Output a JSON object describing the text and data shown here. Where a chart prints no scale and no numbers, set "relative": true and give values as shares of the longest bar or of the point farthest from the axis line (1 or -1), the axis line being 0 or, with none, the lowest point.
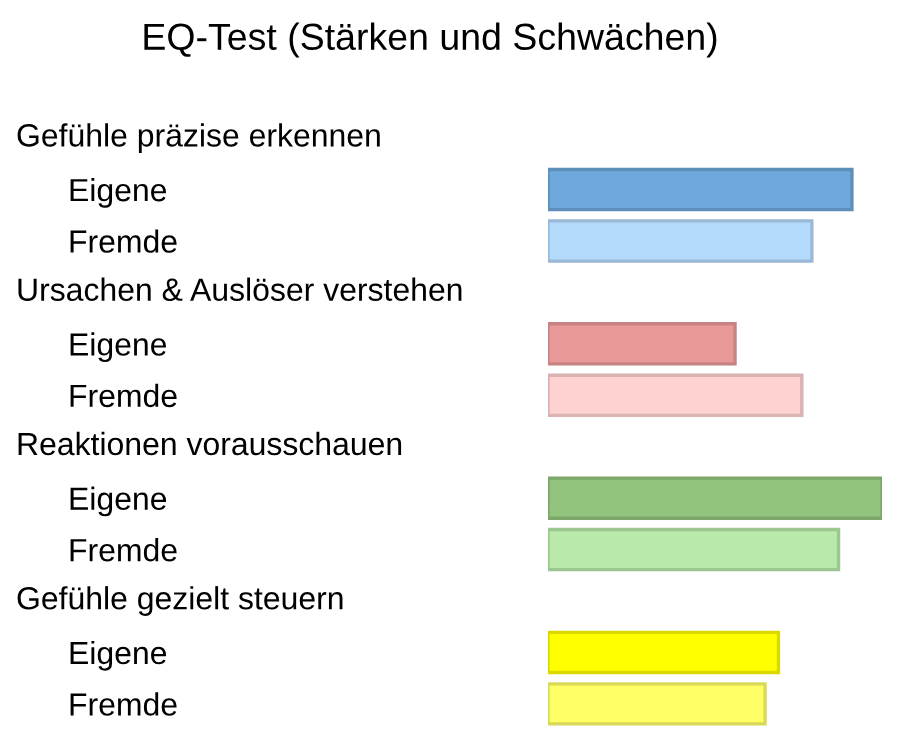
{
  "chart_data": {
    "type": "bar",
    "orientation": "horizontal",
    "relative": true,
    "title": "EQ-Test (Stärken und Schwächen)",
    "annotations": [
      "Gefühle präzise erkennen",
      "Ursachen & Auslöser verstehen",
      "Reaktionen vorausschauen",
      "Gefühle gezielt steuern"
    ],
    "categories": [
      "Eigene",
      "Fremde",
      "Eigene",
      "Fremde",
      "Eigene",
      "Fremde",
      "Eigene",
      "Fremde"
    ],
    "values": [
      0.91,
      0.79,
      0.56,
      0.76,
      1,
      0.87,
      0.69,
      0.65
    ],
    "colors": [
      "#6fa8dc",
      "#b4dafc",
      "#ea9999",
      "#ffd2d2",
      "#93c47d",
      "#b9eaa9",
      "#ffff00",
      "#ffff66"
    ],
    "legend": false
  }
}
